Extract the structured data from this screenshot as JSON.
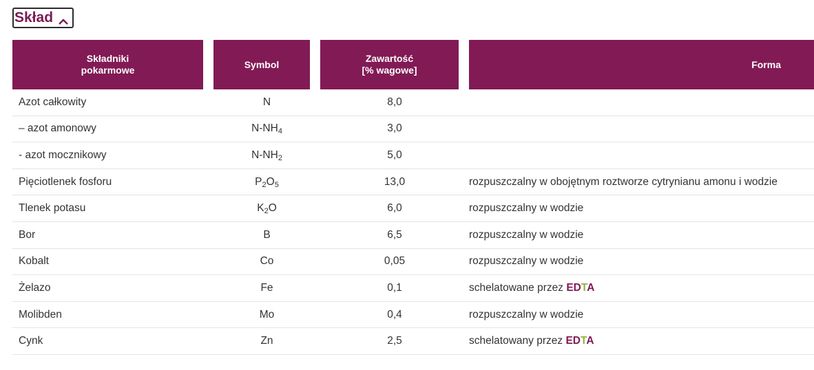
{
  "section": {
    "title": "Skład"
  },
  "table": {
    "headers": {
      "ingredients_line1": "Składniki",
      "ingredients_line2": "pokarmowe",
      "symbol": "Symbol",
      "content_line1": "Zawartość",
      "content_line2": "[% wagowe]",
      "form": "Forma"
    },
    "rows": [
      {
        "name": "Azot całkowity",
        "sym": "N",
        "sub1": "",
        "sym2": "",
        "sub2": "",
        "value": "8,0",
        "form": ""
      },
      {
        "name": "– azot amonowy",
        "sym": "N-NH",
        "sub1": "4",
        "sym2": "",
        "sub2": "",
        "value": "3,0",
        "form": ""
      },
      {
        "name": "- azot mocznikowy",
        "sym": "N-NH",
        "sub1": "2",
        "sym2": "",
        "sub2": "",
        "value": "5,0",
        "form": ""
      },
      {
        "name": "Pięciotlenek fosforu",
        "sym": "P",
        "sub1": "2",
        "sym2": "O",
        "sub2": "5",
        "value": "13,0",
        "form": "rozpuszczalny w obojętnym roztworze cytrynianu amonu i wodzie"
      },
      {
        "name": "Tlenek potasu",
        "sym": "K",
        "sub1": "2",
        "sym2": "O",
        "sub2": "",
        "value": "6,0",
        "form": "rozpuszczalny w wodzie"
      },
      {
        "name": "Bor",
        "sym": "B",
        "sub1": "",
        "sym2": "",
        "sub2": "",
        "value": "6,5",
        "form": "rozpuszczalny w wodzie"
      },
      {
        "name": "Kobalt",
        "sym": "Co",
        "sub1": "",
        "sym2": "",
        "sub2": "",
        "value": "0,05",
        "form": "rozpuszczalny w wodzie"
      },
      {
        "name": "Żelazo",
        "sym": "Fe",
        "sub1": "",
        "sym2": "",
        "sub2": "",
        "value": "0,1",
        "form": "schelatowane przez ",
        "edta_ed": "ED",
        "edta_t": "T",
        "edta_a": "A"
      },
      {
        "name": "Molibden",
        "sym": "Mo",
        "sub1": "",
        "sym2": "",
        "sub2": "",
        "value": "0,4",
        "form": "rozpuszczalny w wodzie"
      },
      {
        "name": "Cynk",
        "sym": "Zn",
        "sub1": "",
        "sym2": "",
        "sub2": "",
        "value": "2,5",
        "form": "schelatowany przez ",
        "edta_ed": "ED",
        "edta_t": "T",
        "edta_a": "A"
      }
    ]
  },
  "colors": {
    "header_bg": "#821a55",
    "title": "#7d1a55",
    "edta_t": "#8fb43a"
  }
}
